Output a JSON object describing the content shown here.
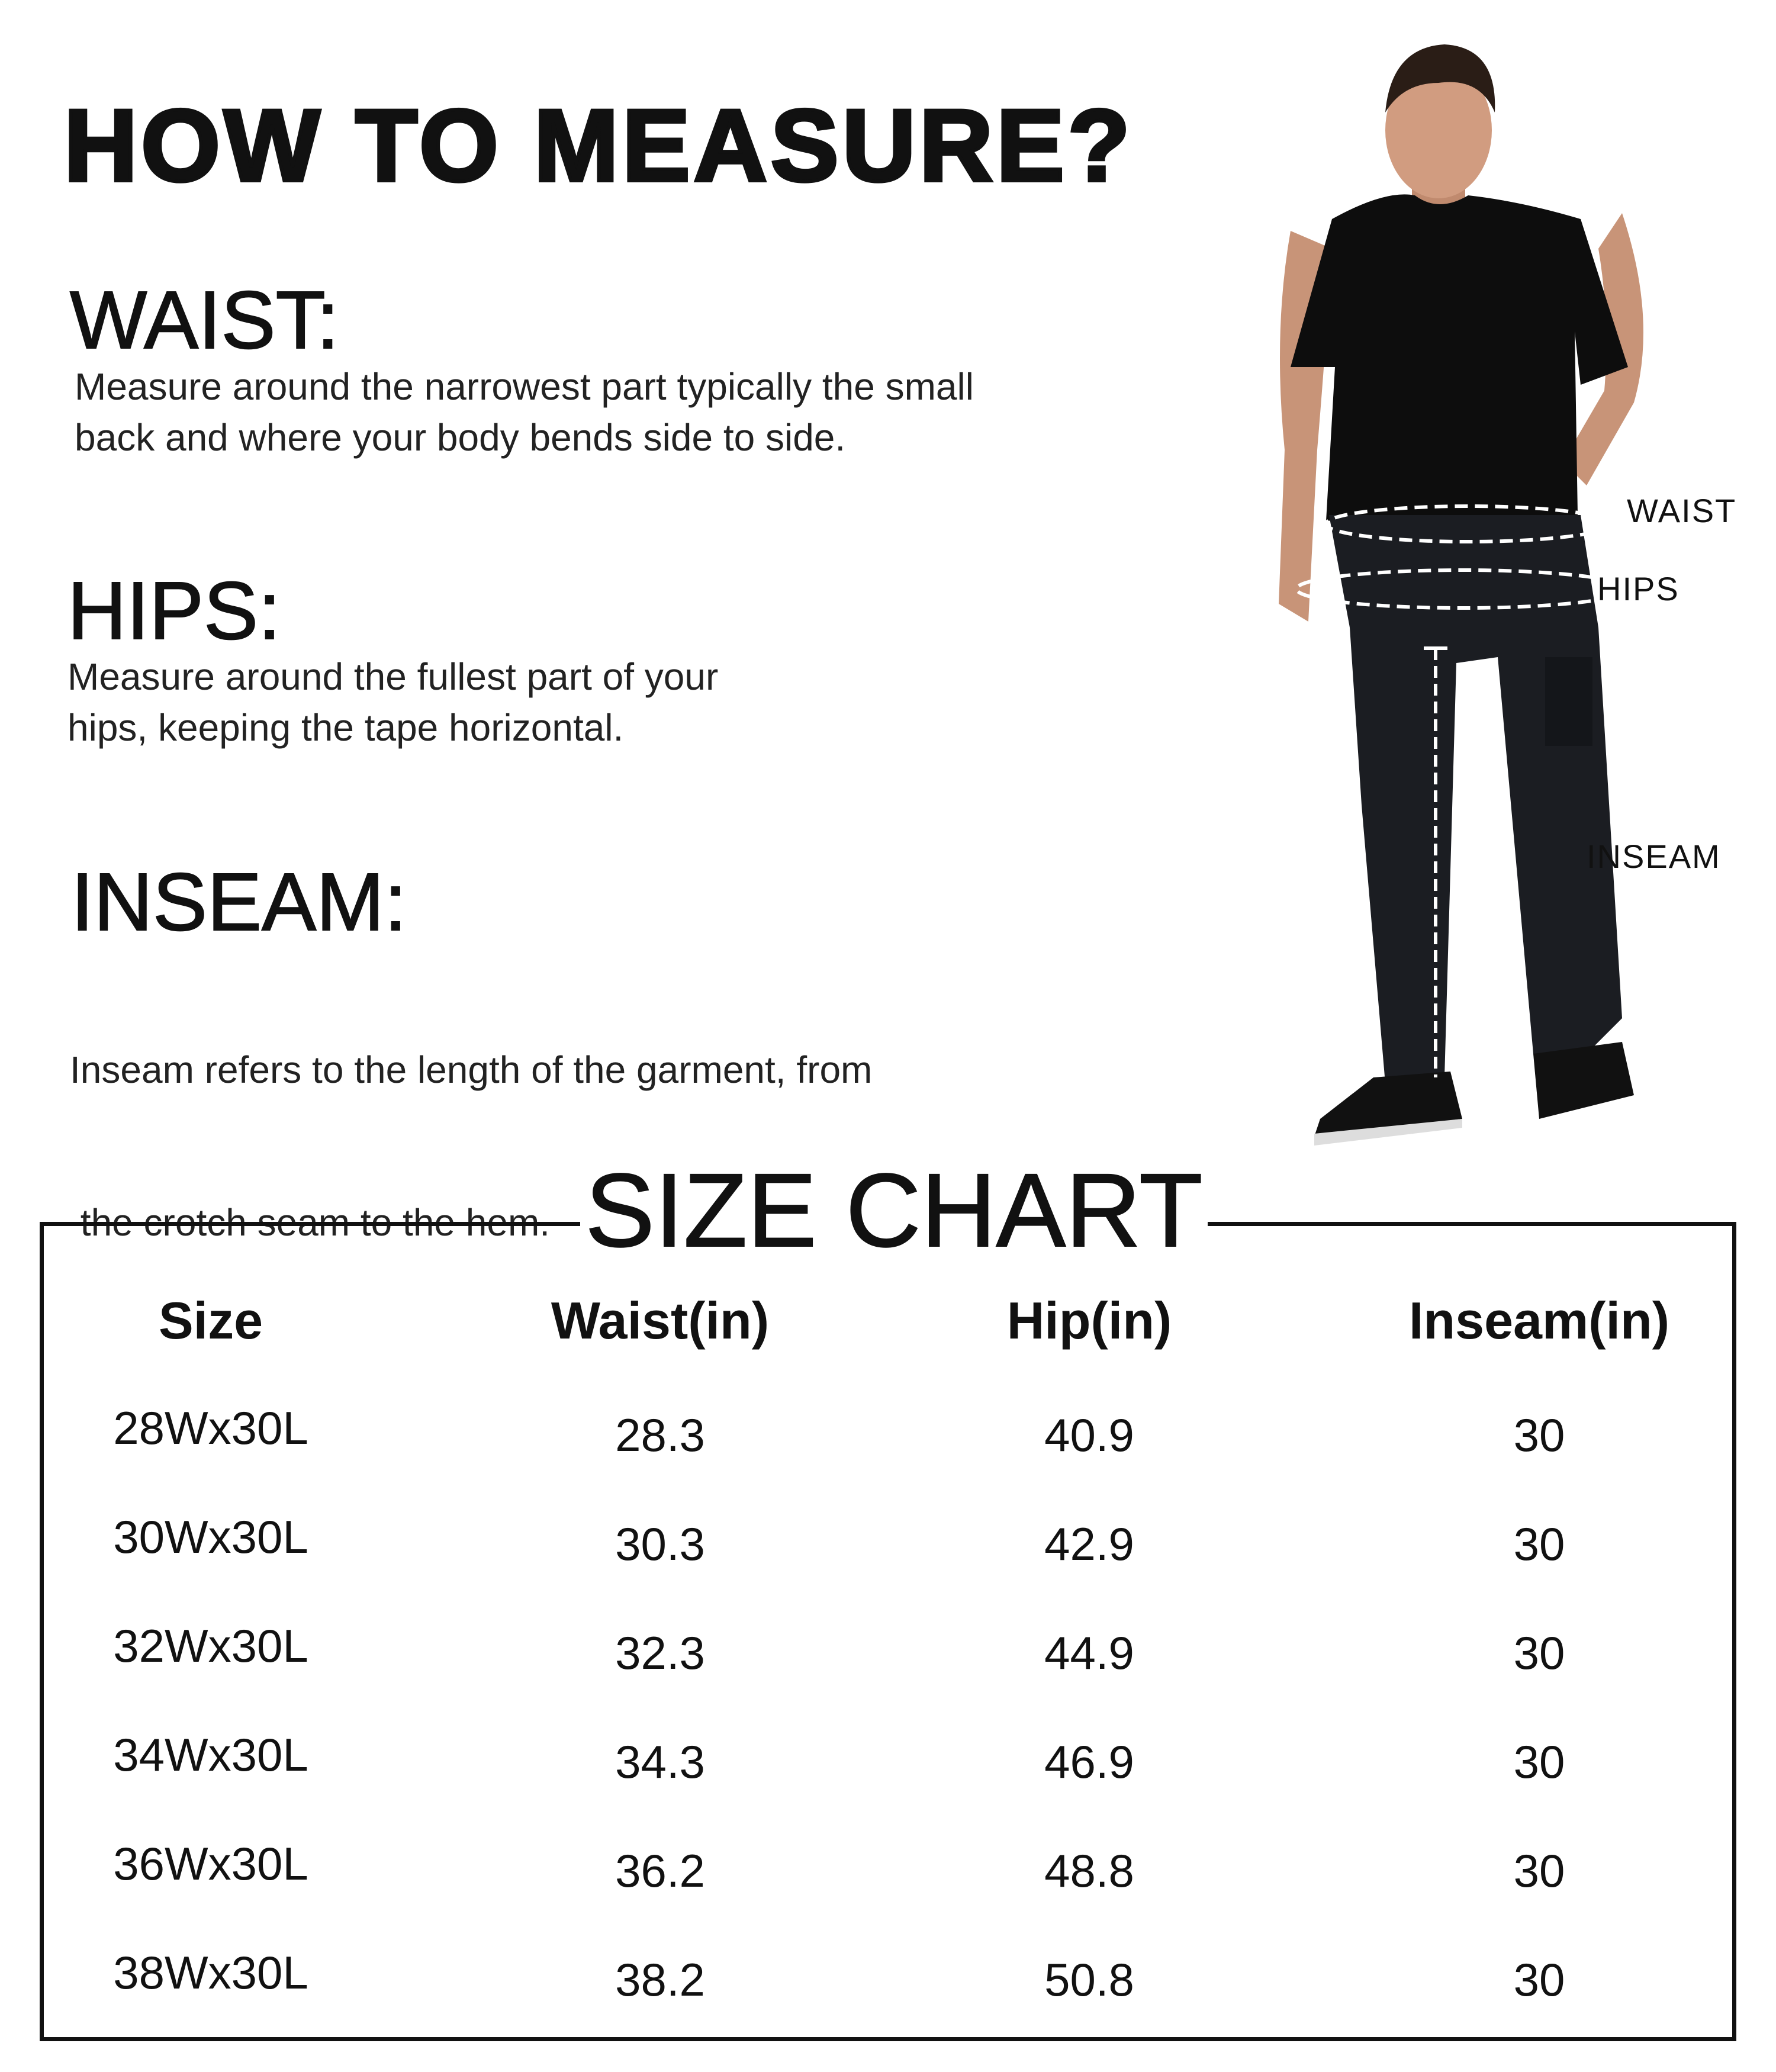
{
  "title": "HOW TO MEASURE?",
  "sections": [
    {
      "heading": "WAIST:",
      "lines": [
        "Measure around the narrowest part typically the small",
        "back and where your body bends side to side."
      ]
    },
    {
      "heading": "HIPS:",
      "lines": [
        "Measure around the fullest part of your",
        "hips, keeping the tape horizontal."
      ]
    },
    {
      "heading": "INSEAM:",
      "lines": [
        "Inseam refers to the length of the garment, from",
        " the crotch seam to the hem."
      ]
    }
  ],
  "figure_labels": {
    "waist": "WAIST",
    "hips": "HIPS",
    "inseam": "INSEAM"
  },
  "size_chart": {
    "title": "SIZE CHART",
    "headers": [
      "Size",
      "Waist(in)",
      "Hip(in)",
      "Inseam(in)"
    ],
    "rows": [
      [
        "28Wx30L",
        "28.3",
        "40.9",
        "30"
      ],
      [
        "30Wx30L",
        "30.3",
        "42.9",
        "30"
      ],
      [
        "32Wx30L",
        "32.3",
        "44.9",
        "30"
      ],
      [
        "34Wx30L",
        "34.3",
        "46.9",
        "30"
      ],
      [
        "36Wx30L",
        "36.2",
        "48.8",
        "30"
      ],
      [
        "38Wx30L",
        "38.2",
        "50.8",
        "30"
      ]
    ]
  }
}
